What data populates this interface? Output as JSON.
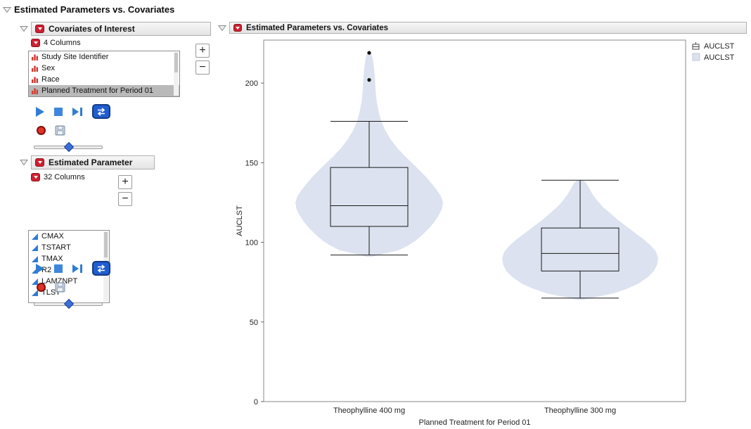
{
  "page": {
    "title": "Estimated Parameters vs. Covariates"
  },
  "left": {
    "covariates": {
      "title": "Covariates of Interest",
      "columns_label": "4 Columns",
      "add_label": "+",
      "remove_label": "−",
      "items": [
        {
          "label": "Study Site Identifier",
          "icon": "nominal",
          "selected": false
        },
        {
          "label": "Sex",
          "icon": "nominal",
          "selected": false
        },
        {
          "label": "Race",
          "icon": "nominal",
          "selected": false
        },
        {
          "label": "Planned Treatment for Period 01",
          "icon": "nominal",
          "selected": true
        }
      ]
    },
    "parameters": {
      "title": "Estimated Parameter",
      "columns_label": "32 Columns",
      "add_label": "+",
      "remove_label": "−",
      "items": [
        {
          "label": "CMAX",
          "icon": "continuous",
          "selected": false
        },
        {
          "label": "TSTART",
          "icon": "continuous",
          "selected": false
        },
        {
          "label": "TMAX",
          "icon": "continuous",
          "selected": false
        },
        {
          "label": "R2",
          "icon": "continuous",
          "selected": false
        },
        {
          "label": "LAMZNPT",
          "icon": "continuous",
          "selected": false
        },
        {
          "label": "TLST",
          "icon": "continuous",
          "selected": false
        }
      ]
    }
  },
  "report": {
    "title": "Estimated Parameters vs. Covariates"
  },
  "colors": {
    "accent_red": "#cf2030",
    "accent_blue": "#2e7dd2",
    "selected_row": "#b9b9b9"
  },
  "chart_data": {
    "type": "violin-box",
    "ylabel": "AUCLST",
    "xlabel": "Planned Treatment for Period 01",
    "ylim": [
      0,
      227
    ],
    "yticks": [
      0,
      50,
      100,
      150,
      200
    ],
    "categories": [
      "Theophylline 400 mg",
      "Theophylline 300 mg"
    ],
    "legend": [
      {
        "label": "AUCLST",
        "swatch": "boxplot"
      },
      {
        "label": "AUCLST",
        "swatch": "violin-fill"
      }
    ],
    "colors": {
      "violin_fill": "#dce2ef",
      "box_stroke": "#1a1a1a"
    },
    "series": [
      {
        "category": "Theophylline 400 mg",
        "box": {
          "q1": 110,
          "median": 123,
          "q3": 147,
          "whisker_low": 92,
          "whisker_high": 176
        },
        "outliers": [
          202,
          219
        ],
        "violin_profile": [
          [
            91,
            0.03
          ],
          [
            93,
            0.15
          ],
          [
            95,
            0.28
          ],
          [
            98,
            0.37
          ],
          [
            101,
            0.44
          ],
          [
            105,
            0.51
          ],
          [
            109,
            0.57
          ],
          [
            113,
            0.62
          ],
          [
            117,
            0.66
          ],
          [
            121,
            0.69
          ],
          [
            125,
            0.7
          ],
          [
            129,
            0.68
          ],
          [
            133,
            0.64
          ],
          [
            137,
            0.59
          ],
          [
            141,
            0.54
          ],
          [
            145,
            0.48
          ],
          [
            149,
            0.42
          ],
          [
            154,
            0.34
          ],
          [
            159,
            0.27
          ],
          [
            164,
            0.21
          ],
          [
            170,
            0.155
          ],
          [
            176,
            0.115
          ],
          [
            182,
            0.09
          ],
          [
            189,
            0.07
          ],
          [
            196,
            0.06
          ],
          [
            203,
            0.055
          ],
          [
            210,
            0.045
          ],
          [
            215,
            0.035
          ],
          [
            219,
            0.02
          ]
        ]
      },
      {
        "category": "Theophylline 300 mg",
        "box": {
          "q1": 82,
          "median": 93,
          "q3": 109,
          "whisker_low": 65,
          "whisker_high": 139
        },
        "outliers": [],
        "violin_profile": [
          [
            64,
            0.03
          ],
          [
            66,
            0.18
          ],
          [
            68,
            0.32
          ],
          [
            71,
            0.45
          ],
          [
            74,
            0.55
          ],
          [
            78,
            0.64
          ],
          [
            82,
            0.7
          ],
          [
            86,
            0.73
          ],
          [
            90,
            0.74
          ],
          [
            94,
            0.72
          ],
          [
            98,
            0.67
          ],
          [
            102,
            0.6
          ],
          [
            106,
            0.52
          ],
          [
            110,
            0.44
          ],
          [
            114,
            0.36
          ],
          [
            118,
            0.29
          ],
          [
            122,
            0.22
          ],
          [
            126,
            0.165
          ],
          [
            130,
            0.12
          ],
          [
            134,
            0.085
          ],
          [
            137,
            0.06
          ],
          [
            139,
            0.03
          ]
        ]
      }
    ]
  }
}
